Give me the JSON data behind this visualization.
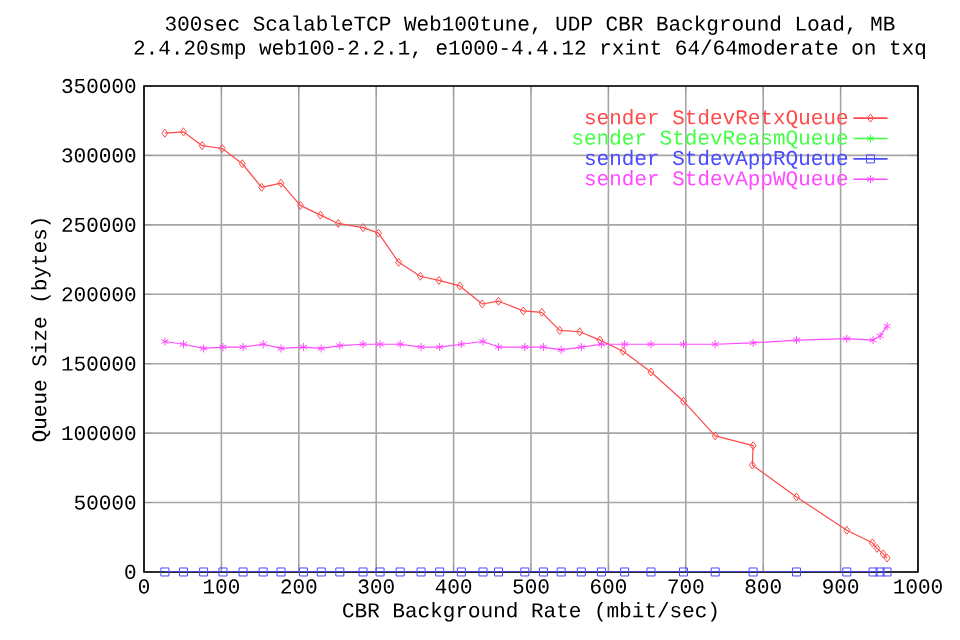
{
  "chart_data": {
    "type": "line",
    "title": "300sec ScalableTCP Web100tune, UDP CBR Background Load, MB",
    "subtitle": "2.4.20smp web100-2.2.1, e1000-4.4.12 rxint 64/64moderate on txq",
    "xlabel": "CBR Background Rate (mbit/sec)",
    "ylabel": "Queue Size (bytes)",
    "xlim": [
      0,
      1000
    ],
    "xticks": [
      0,
      100,
      200,
      300,
      400,
      500,
      600,
      700,
      800,
      900,
      1000
    ],
    "ylim": [
      0,
      350000
    ],
    "yticks": [
      0,
      50000,
      100000,
      150000,
      200000,
      250000,
      300000,
      350000
    ],
    "grid": true,
    "legend": "top right",
    "series": [
      {
        "name": "sender StdevRetxQueue",
        "color": "#ff4a4a",
        "marker": "diamond",
        "x": [
          27,
          51,
          75,
          101,
          127,
          152,
          177,
          202,
          228,
          251,
          283,
          303,
          329,
          357,
          381,
          408,
          437,
          458,
          490,
          514,
          537,
          563,
          589,
          619,
          655,
          697,
          738,
          787,
          786,
          843,
          908,
          941,
          947,
          955,
          960
        ],
        "values": [
          316000,
          317000,
          307000,
          305000,
          294000,
          277000,
          280000,
          264000,
          257000,
          251000,
          248000,
          244000,
          223000,
          213000,
          210000,
          206000,
          193000,
          195000,
          188000,
          187000,
          174000,
          173000,
          167000,
          159000,
          144000,
          123000,
          98000,
          91000,
          77000,
          54000,
          30000,
          21000,
          17000,
          13000,
          10000
        ]
      },
      {
        "name": "sender StdevReasmQueue",
        "color": "#40ff40",
        "marker": "cross",
        "values": [
          null
        ]
      },
      {
        "name": "sender StdevAppRQueue",
        "color": "#4a4aff",
        "marker": "square",
        "x": [
          27,
          51,
          77,
          102,
          128,
          154,
          177,
          206,
          229,
          253,
          283,
          305,
          331,
          358,
          382,
          410,
          438,
          458,
          492,
          516,
          539,
          565,
          591,
          621,
          655,
          697,
          738,
          787,
          843,
          908,
          942,
          951,
          960
        ],
        "values": [
          0,
          0,
          0,
          0,
          0,
          0,
          0,
          0,
          0,
          0,
          0,
          0,
          0,
          0,
          0,
          0,
          0,
          0,
          0,
          0,
          0,
          0,
          0,
          0,
          0,
          0,
          0,
          0,
          0,
          0,
          0,
          0,
          0
        ]
      },
      {
        "name": "sender StdevAppWQueue",
        "color": "#ff4aff",
        "marker": "cross",
        "x": [
          27,
          51,
          77,
          102,
          128,
          154,
          177,
          206,
          229,
          253,
          283,
          305,
          331,
          358,
          382,
          410,
          438,
          458,
          492,
          516,
          539,
          565,
          591,
          621,
          655,
          697,
          738,
          787,
          843,
          908,
          942,
          951,
          960
        ],
        "values": [
          166000,
          164000,
          161000,
          162000,
          162000,
          164000,
          161000,
          162000,
          161000,
          163000,
          164000,
          164000,
          164000,
          162000,
          162000,
          164000,
          166000,
          162000,
          162000,
          162000,
          160000,
          162000,
          164000,
          164000,
          164000,
          164000,
          164000,
          165000,
          167000,
          168000,
          167000,
          170000,
          177000
        ]
      }
    ]
  }
}
